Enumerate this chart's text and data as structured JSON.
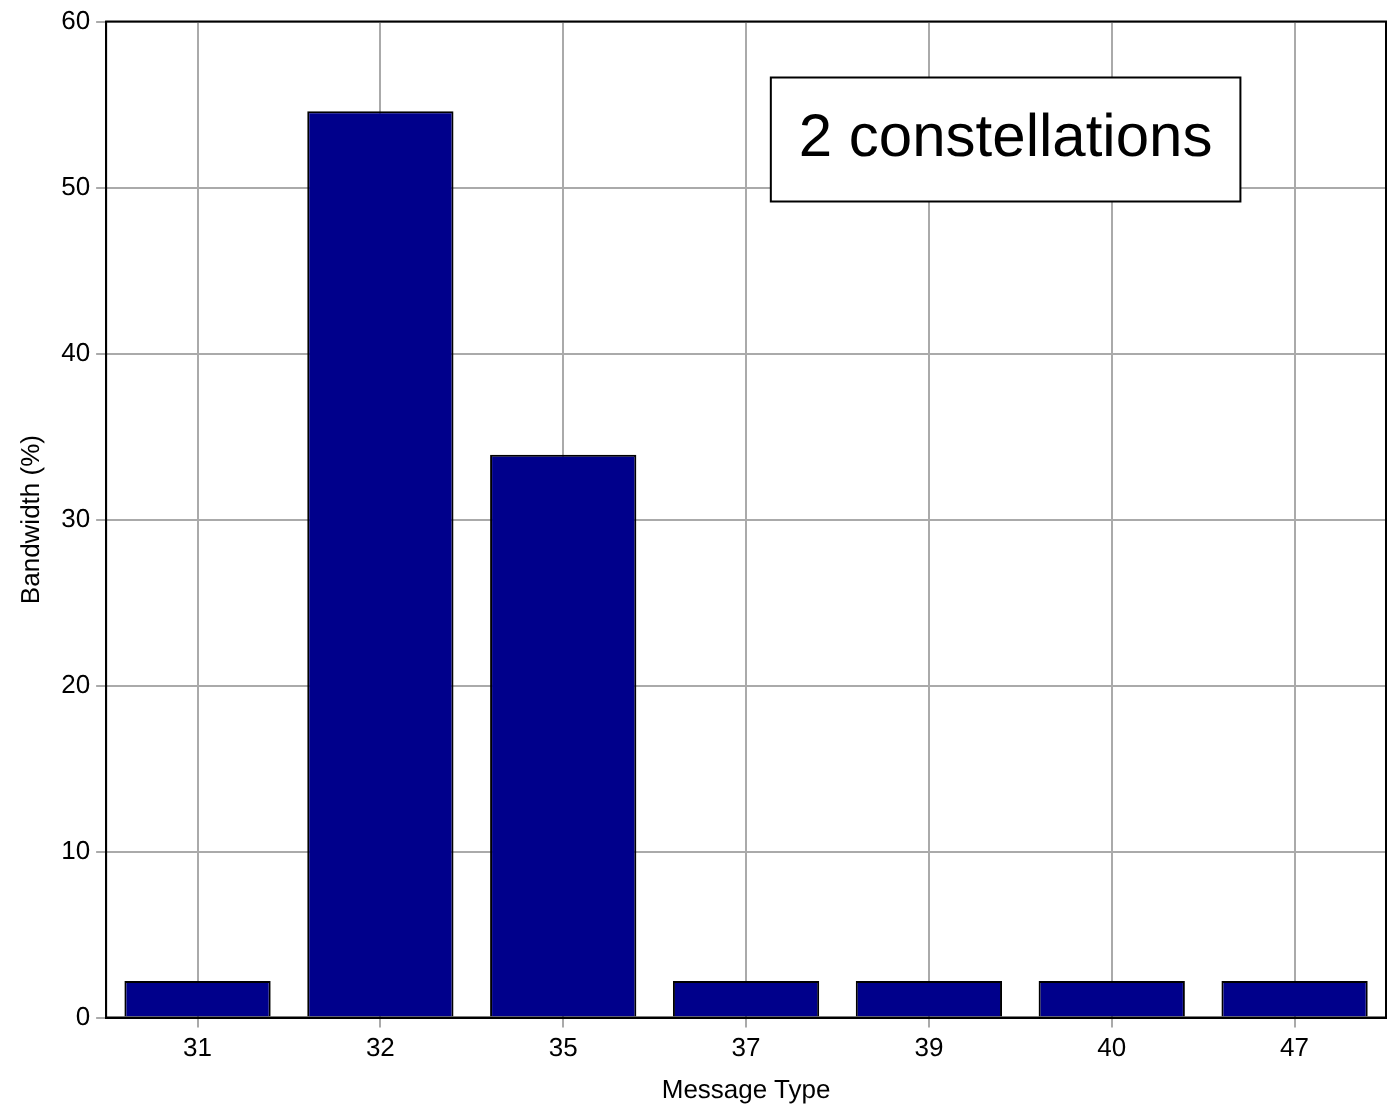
{
  "chart_data": {
    "type": "bar",
    "xlabel": "Message Type",
    "ylabel": "Bandwidth (%)",
    "categories": [
      "31",
      "32",
      "35",
      "37",
      "39",
      "40",
      "47"
    ],
    "values": [
      2.2,
      54.6,
      33.9,
      2.2,
      2.2,
      2.2,
      2.2
    ],
    "color": "#00008b",
    "ylim": [
      0,
      60
    ],
    "yticks": [
      0,
      10,
      20,
      30,
      40,
      50,
      60
    ],
    "grid": true,
    "annotations": [
      "2 constellations"
    ]
  }
}
